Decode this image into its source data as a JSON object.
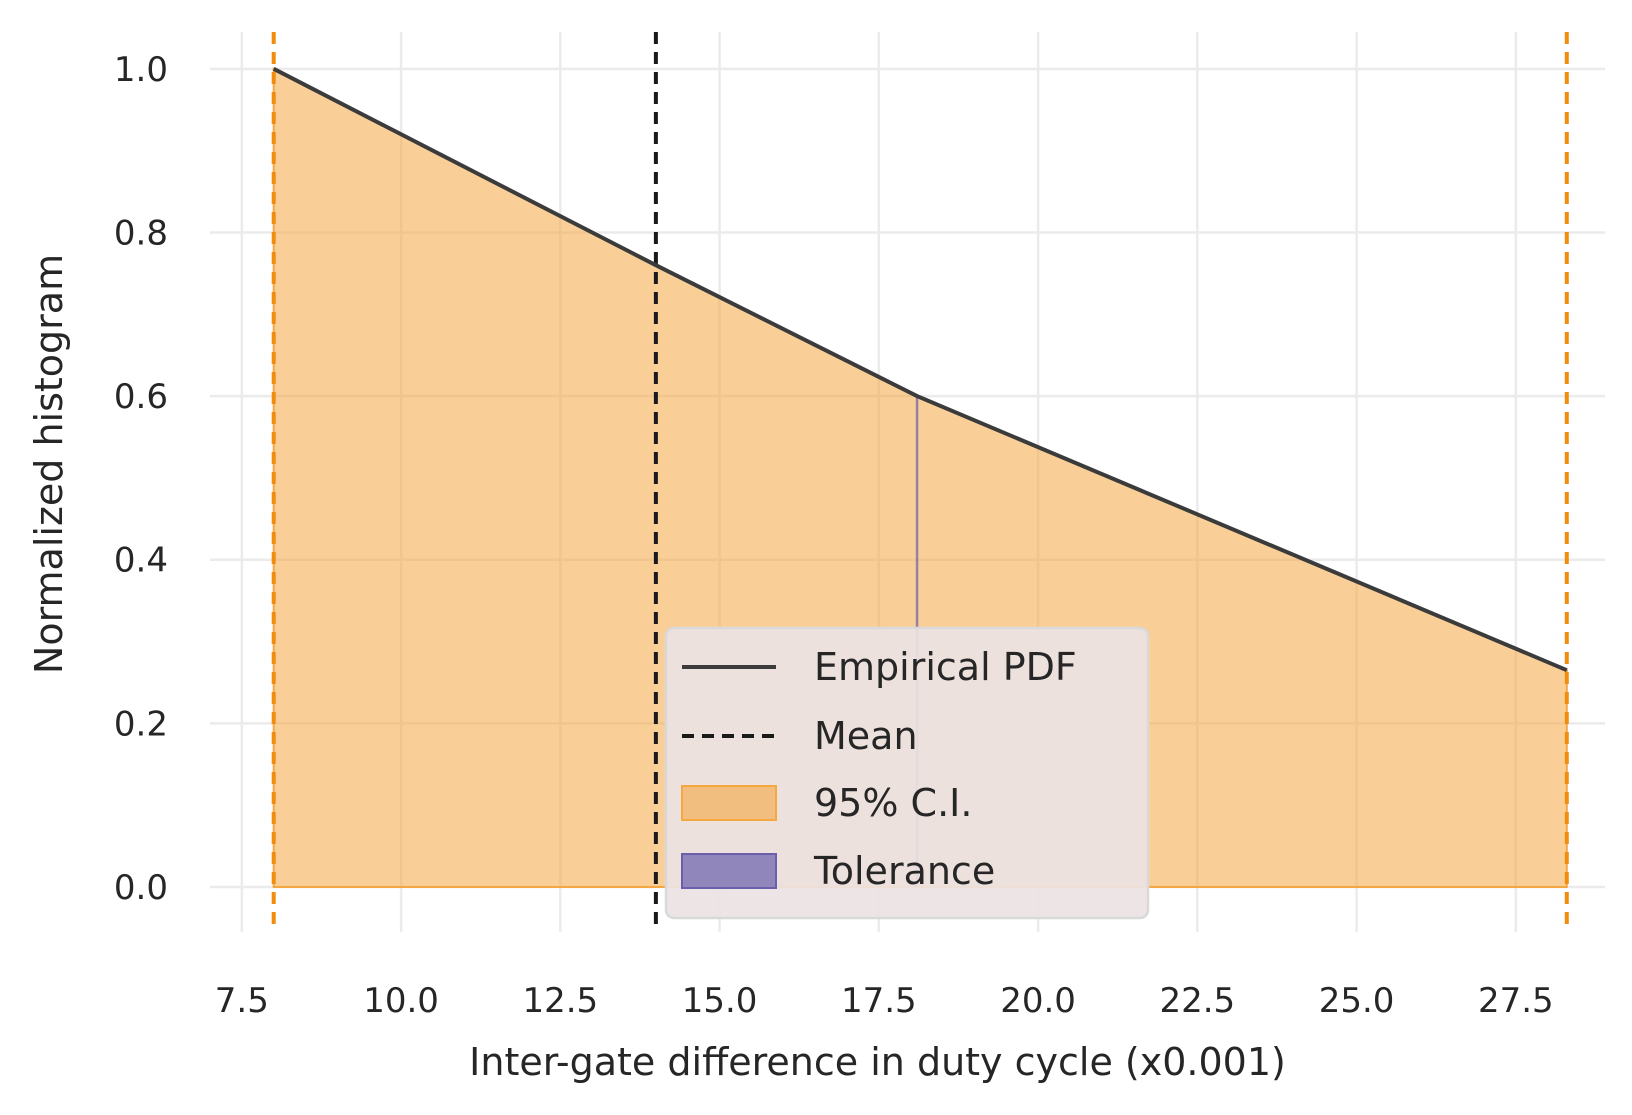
{
  "chart_data": {
    "type": "area",
    "title": "",
    "xlabel": "Inter-gate difference in duty cycle  (x0.001)",
    "ylabel": "Normalized histogram",
    "xlim": [
      7.0,
      28.9
    ],
    "ylim": [
      -0.055,
      1.045
    ],
    "x_ticks": [
      7.5,
      10.0,
      12.5,
      15.0,
      17.5,
      20.0,
      22.5,
      25.0,
      27.5
    ],
    "x_tick_labels": [
      "7.5",
      "10.0",
      "12.5",
      "15.0",
      "17.5",
      "20.0",
      "22.5",
      "25.0",
      "27.5"
    ],
    "y_ticks": [
      0.0,
      0.2,
      0.4,
      0.6,
      0.8,
      1.0
    ],
    "y_tick_labels": [
      "0.0",
      "0.2",
      "0.4",
      "0.6",
      "0.8",
      "1.0"
    ],
    "grid": true,
    "series": [
      {
        "name": "Empirical PDF",
        "style": "solid-line",
        "color": "#3b3b3b",
        "x": [
          8.0,
          14.0,
          18.1,
          28.3
        ],
        "y": [
          1.0,
          0.76,
          0.6,
          0.265
        ]
      }
    ],
    "mean": {
      "name": "Mean",
      "x": 14.0,
      "color": "#1a1a1a"
    },
    "confidence_interval": {
      "name": "95% C.I.",
      "x_low": 8.0,
      "x_high": 28.3,
      "color": "#f5a742",
      "line_color": "#f28c0f"
    },
    "tolerance": {
      "name": "Tolerance",
      "x": 18.1,
      "color": "#6a5fad"
    },
    "legend": {
      "position": "lower-center",
      "entries": [
        "Empirical PDF",
        "Mean",
        "95% C.I.",
        "Tolerance"
      ]
    }
  }
}
